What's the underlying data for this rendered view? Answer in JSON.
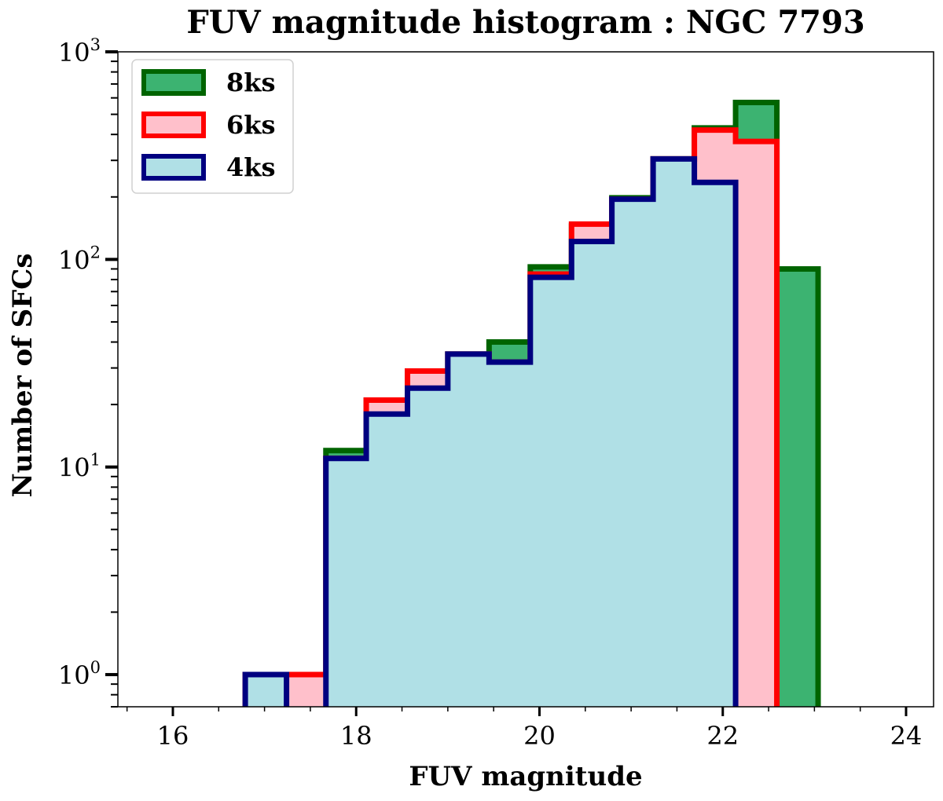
{
  "chart_data": {
    "type": "bar",
    "title": "FUV magnitude histogram : NGC 7793",
    "xlabel": "FUV magnitude",
    "ylabel": "Number of SFCs",
    "xlim": [
      15.4,
      24.3
    ],
    "ylim": [
      0.7,
      1000
    ],
    "y_scale": "log",
    "x_ticks": [
      16,
      18,
      20,
      22,
      24
    ],
    "y_ticks": [
      {
        "value": 1,
        "base": "10",
        "exp": "0"
      },
      {
        "value": 10,
        "base": "10",
        "exp": "1"
      },
      {
        "value": 100,
        "base": "10",
        "exp": "2"
      },
      {
        "value": 1000,
        "base": "10",
        "exp": "3"
      }
    ],
    "legend_position": "top-left",
    "series": [
      {
        "name": "8ks",
        "fill": "#3cb371",
        "edge": "#006400",
        "bin_edges": [
          17.67,
          18.11,
          18.56,
          19.0,
          19.45,
          19.9,
          20.35,
          20.79,
          21.24,
          21.69,
          22.14,
          22.59,
          23.04
        ],
        "counts": [
          12,
          21,
          29,
          35,
          40,
          92,
          145,
          198,
          305,
          430,
          570,
          90
        ]
      },
      {
        "name": "6ks",
        "fill": "#ffc0cb",
        "edge": "#ff0000",
        "bin_edges": [
          16.79,
          17.24,
          17.67,
          18.11,
          18.56,
          19.0,
          19.45,
          19.9,
          20.35,
          20.79,
          21.24,
          21.69,
          22.14,
          22.59
        ],
        "counts": [
          1,
          1,
          11,
          21,
          29,
          35,
          32,
          85,
          148,
          195,
          305,
          420,
          370
        ]
      },
      {
        "name": "4ks",
        "fill": "#b0e0e6",
        "edge": "#000080",
        "bin_edges": [
          16.79,
          17.24,
          17.67,
          18.11,
          18.56,
          19.0,
          19.45,
          19.9,
          20.35,
          20.79,
          21.24,
          21.69,
          22.14
        ],
        "counts": [
          1,
          0,
          11,
          18,
          24,
          35,
          32,
          82,
          122,
          195,
          305,
          235
        ]
      }
    ]
  }
}
